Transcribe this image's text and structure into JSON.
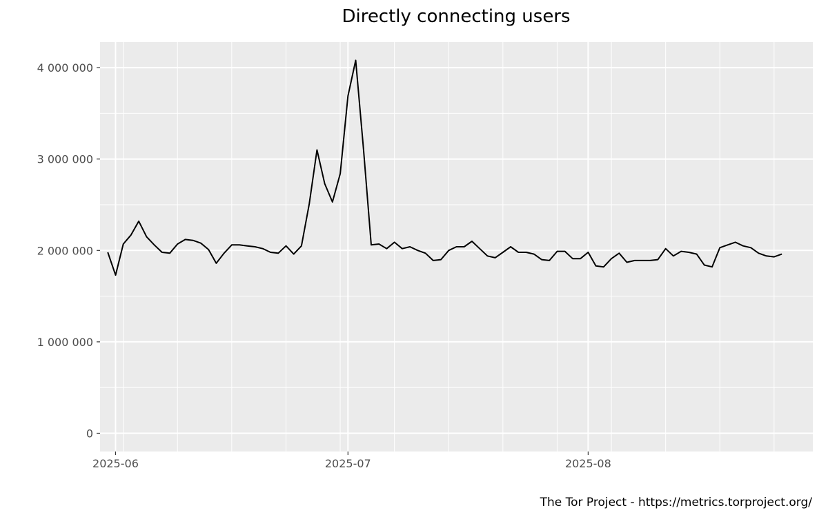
{
  "chart_data": {
    "type": "line",
    "title": "Directly connecting users",
    "caption": "The Tor Project - https://metrics.torproject.org/",
    "xlabel": "",
    "ylabel": "",
    "x_start": "2025-05-31",
    "x_step_days": 1,
    "xlim": [
      "2025-05-30",
      "2025-08-30"
    ],
    "ylim": [
      -200000,
      4280000
    ],
    "x_ticks": [
      {
        "date": "2025-06-01",
        "label": "2025-06"
      },
      {
        "date": "2025-07-01",
        "label": "2025-07"
      },
      {
        "date": "2025-08-01",
        "label": "2025-08"
      }
    ],
    "y_ticks": [
      {
        "value": 0,
        "label": "0"
      },
      {
        "value": 1000000,
        "label": "1 000 000"
      },
      {
        "value": 2000000,
        "label": "2 000 000"
      },
      {
        "value": 3000000,
        "label": "3 000 000"
      },
      {
        "value": 4000000,
        "label": "4 000 000"
      }
    ],
    "grid": true,
    "colors": {
      "line": "#000000",
      "panel": "#ebebeb",
      "grid": "#ffffff"
    },
    "series": [
      {
        "values": [
          1980000,
          1730000,
          2070000,
          2170000,
          2320000,
          2150000,
          2060000,
          1980000,
          1970000,
          2070000,
          2120000,
          2110000,
          2080000,
          2010000,
          1860000,
          1970000,
          2060000,
          2060000,
          2050000,
          2040000,
          2020000,
          1980000,
          1970000,
          2050000,
          1960000,
          2050000,
          2510000,
          3100000,
          2730000,
          2530000,
          2840000,
          3690000,
          4080000,
          3110000,
          2060000,
          2070000,
          2020000,
          2090000,
          2020000,
          2040000,
          2000000,
          1970000,
          1890000,
          1900000,
          2000000,
          2040000,
          2040000,
          2100000,
          2020000,
          1940000,
          1920000,
          1980000,
          2040000,
          1980000,
          1980000,
          1960000,
          1900000,
          1890000,
          1990000,
          1990000,
          1910000,
          1910000,
          1980000,
          1830000,
          1820000,
          1910000,
          1970000,
          1870000,
          1890000,
          1890000,
          1890000,
          1900000,
          2020000,
          1940000,
          1990000,
          1980000,
          1960000,
          1840000,
          1820000,
          2030000,
          2060000,
          2090000,
          2050000,
          2030000,
          1970000,
          1940000,
          1930000,
          1960000
        ]
      }
    ]
  }
}
